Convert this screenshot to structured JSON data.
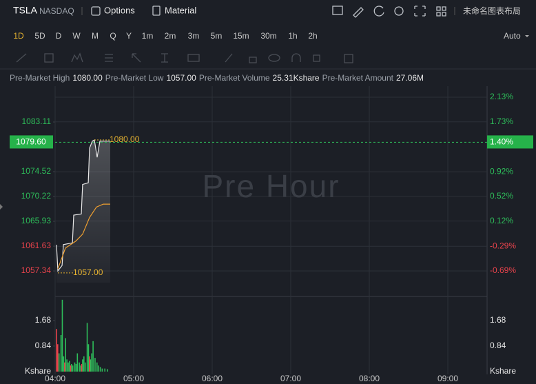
{
  "header": {
    "symbol": "TSLA",
    "exchange": "NASDAQ",
    "options": "Options",
    "material": "Material",
    "layout": "未命名图表布局"
  },
  "timeframes": [
    "1D",
    "5D",
    "D",
    "W",
    "M",
    "Q",
    "Y",
    "1m",
    "2m",
    "3m",
    "5m",
    "15m",
    "30m",
    "1h",
    "2h"
  ],
  "scale": "Auto",
  "stats": [
    {
      "label": "Pre-Market High",
      "value": "1080.00"
    },
    {
      "label": "Pre-Market Low",
      "value": "1057.00"
    },
    {
      "label": "Pre-Market Volume",
      "value": "25.31Kshare"
    },
    {
      "label": "Pre-Market Amount",
      "value": "27.06M"
    }
  ],
  "chart_data": [
    {
      "type": "line",
      "watermark": "Pre Hour",
      "xlim": [
        0,
        330
      ],
      "ylim": [
        1052.93,
        1089.31
      ],
      "yticks": [
        {
          "value": 1057.34,
          "label": "1057.34"
        },
        {
          "value": 1061.63,
          "label": "1061.63"
        },
        {
          "value": 1065.93,
          "label": "1065.93"
        },
        {
          "value": 1070.22,
          "label": "1070.22"
        },
        {
          "value": 1074.52,
          "label": "1074.52"
        },
        {
          "value": 1083.11,
          "label": "1083.11"
        }
      ],
      "y2lim": [
        -1.104,
        2.309
      ],
      "y2ticks": [
        {
          "value": -0.69,
          "label": "-0.69%"
        },
        {
          "value": -0.29,
          "label": "-0.29%"
        },
        {
          "value": 0.12,
          "label": "0.12%"
        },
        {
          "value": 0.52,
          "label": "0.52%"
        },
        {
          "value": 0.92,
          "label": "0.92%"
        },
        {
          "value": 1.73,
          "label": "1.73%"
        },
        {
          "value": 2.13,
          "label": "2.13%"
        }
      ],
      "current_price": {
        "value": 1079.6,
        "label": "1079.60"
      },
      "current_change": {
        "value": 1.4,
        "label": "1.40%"
      },
      "series": [
        {
          "color": "#e8e8e8",
          "x": [
            1.05,
            2.1,
            5.3,
            6.3,
            13.2,
            14.2,
            20,
            21,
            25.3,
            26.3,
            28.4,
            30,
            32.1,
            34.2,
            42.1
          ],
          "values": [
            1061.87,
            1057.34,
            1058.3,
            1061.9,
            1062.2,
            1067.0,
            1067.2,
            1072.3,
            1072.6,
            1078.6,
            1079.8,
            1080.0,
            1077.0,
            1079.8,
            1079.8
          ]
        },
        {
          "color": "#f0a030",
          "x": [
            2.1,
            7.9,
            15.8,
            21,
            26.3,
            31.6,
            36.8,
            42.1
          ],
          "values": [
            1057.7,
            1061.3,
            1062.5,
            1063.7,
            1066.6,
            1068.4,
            1068.9,
            1068.9
          ]
        }
      ],
      "annotations": [
        {
          "x": 30,
          "value": 1080.0,
          "label": "1080.00"
        },
        {
          "x": 2.1,
          "value": 1057.0,
          "label": "1057.00"
        }
      ]
    },
    {
      "type": "bar",
      "unit": "Kshare",
      "xlim": [
        0,
        330
      ],
      "xticks": [
        {
          "value": 0,
          "label": "04:00"
        },
        {
          "value": 60,
          "label": "05:00"
        },
        {
          "value": 120,
          "label": "06:00"
        },
        {
          "value": 180,
          "label": "07:00"
        },
        {
          "value": 240,
          "label": "08:00"
        },
        {
          "value": 300,
          "label": "09:00"
        }
      ],
      "ylim": [
        0,
        2.47
      ],
      "yticks": [
        0.84,
        1.68
      ],
      "series": [
        {
          "color": "#2ebd5a",
          "x": [
            3,
            4.5,
            5.5,
            6.5,
            8,
            9,
            10,
            11,
            12.5,
            13.5,
            15,
            16,
            17,
            18.5,
            19.5,
            21,
            22,
            23,
            24.5,
            25.5,
            27,
            28,
            29,
            30.5,
            32,
            33,
            34.5,
            36,
            38,
            40
          ],
          "values": [
            0.6,
            1.2,
            2.36,
            0.5,
            1.1,
            0.4,
            0.3,
            0.35,
            0.25,
            0.2,
            0.3,
            0.25,
            0.6,
            0.3,
            0.2,
            0.4,
            0.5,
            0.3,
            1.6,
            0.9,
            0.4,
            0.6,
            1.0,
            0.45,
            0.3,
            0.2,
            0.15,
            0.1,
            0.1,
            0.08
          ]
        },
        {
          "color": "#e8434c",
          "x": [
            1,
            2,
            7.3,
            11.8,
            20.3,
            26.3
          ],
          "values": [
            1.4,
            0.9,
            0.3,
            0.2,
            0.25,
            0.5
          ]
        }
      ]
    }
  ]
}
